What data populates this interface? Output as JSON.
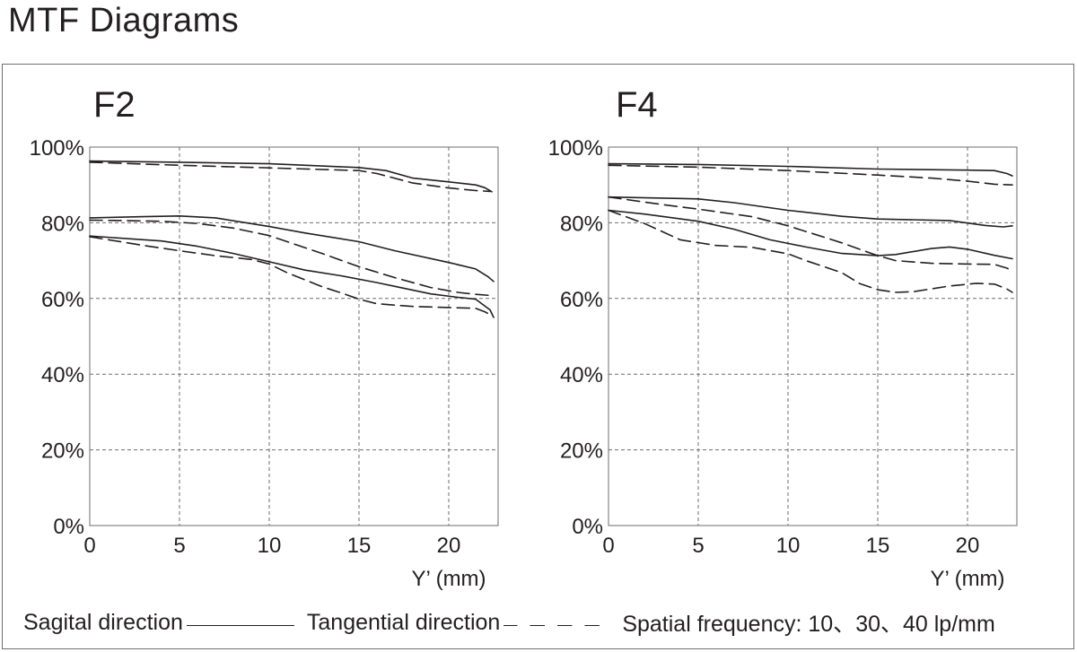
{
  "page": {
    "title": "MTF Diagrams"
  },
  "legend": {
    "sagital": "Sagital direction",
    "tangential": "Tangential direction",
    "spatial": "Spatial frequency: 10、30、40 lp/mm"
  },
  "colors": {
    "ink": "#231f20",
    "grid": "#6d6e71",
    "background": "#ffffff"
  },
  "chart_data": [
    {
      "type": "line",
      "title": "F2",
      "xlabel": "Y’ (mm)",
      "ylabel": "",
      "xlim": [
        0,
        22.5
      ],
      "ylim": [
        0,
        100
      ],
      "xticks": [
        0,
        5,
        10,
        15,
        20
      ],
      "yticks": [
        0,
        20,
        40,
        60,
        80,
        100
      ],
      "xtick_labels": [
        "0",
        "5",
        "10",
        "15",
        "20"
      ],
      "ytick_labels": [
        "0%",
        "20%",
        "40%",
        "60%",
        "80%",
        "100%"
      ],
      "grid": true,
      "series": [
        {
          "style": "solid",
          "points": [
            [
              0,
              96.3
            ],
            [
              5,
              96.0
            ],
            [
              10,
              95.6
            ],
            [
              15,
              94.6
            ],
            [
              16.5,
              93.8
            ],
            [
              18,
              91.8
            ],
            [
              20,
              90.8
            ],
            [
              21.5,
              90.0
            ],
            [
              22,
              89.3
            ],
            [
              22.4,
              88.2
            ]
          ]
        },
        {
          "style": "dashed",
          "points": [
            [
              0,
              96.0
            ],
            [
              5,
              95.2
            ],
            [
              10,
              94.5
            ],
            [
              15,
              93.8
            ],
            [
              16,
              93.0
            ],
            [
              18,
              90.5
            ],
            [
              20,
              89.2
            ],
            [
              21.5,
              88.5
            ],
            [
              22.3,
              88.3
            ]
          ]
        },
        {
          "style": "solid",
          "points": [
            [
              0,
              81.3
            ],
            [
              3,
              81.6
            ],
            [
              5,
              81.8
            ],
            [
              7,
              81.3
            ],
            [
              10,
              79.0
            ],
            [
              12,
              77.3
            ],
            [
              15,
              75.0
            ],
            [
              17,
              72.6
            ],
            [
              20,
              69.5
            ],
            [
              21.5,
              67.8
            ],
            [
              22.2,
              65.7
            ],
            [
              22.5,
              64.5
            ]
          ]
        },
        {
          "style": "dashed",
          "points": [
            [
              0,
              80.7
            ],
            [
              4,
              80.4
            ],
            [
              6,
              79.8
            ],
            [
              8,
              78.6
            ],
            [
              10,
              76.6
            ],
            [
              13,
              71.8
            ],
            [
              15,
              68.4
            ],
            [
              17,
              65.5
            ],
            [
              19,
              62.9
            ],
            [
              20.5,
              61.6
            ],
            [
              21.5,
              61.1
            ],
            [
              22.3,
              60.8
            ]
          ]
        },
        {
          "style": "solid",
          "points": [
            [
              0,
              76.5
            ],
            [
              4,
              75.2
            ],
            [
              6,
              73.8
            ],
            [
              8,
              71.9
            ],
            [
              10,
              69.7
            ],
            [
              12,
              67.5
            ],
            [
              14,
              66.0
            ],
            [
              16,
              64.2
            ],
            [
              17,
              63.2
            ],
            [
              19,
              61.2
            ],
            [
              20.5,
              60.3
            ],
            [
              21.5,
              59.8
            ],
            [
              22.3,
              57.0
            ],
            [
              22.5,
              55.0
            ]
          ]
        },
        {
          "style": "dashed",
          "points": [
            [
              0,
              76.3
            ],
            [
              3,
              74.0
            ],
            [
              5,
              72.6
            ],
            [
              7,
              71.3
            ],
            [
              9,
              70.3
            ],
            [
              10,
              69.1
            ],
            [
              11,
              66.8
            ],
            [
              13,
              63.0
            ],
            [
              14,
              61.5
            ],
            [
              15,
              59.8
            ],
            [
              16,
              58.6
            ],
            [
              18,
              57.9
            ],
            [
              20,
              57.6
            ],
            [
              21.5,
              57.4
            ],
            [
              22,
              56.5
            ],
            [
              22.4,
              55.5
            ]
          ]
        }
      ]
    },
    {
      "type": "line",
      "title": "F4",
      "xlabel": "Y’ (mm)",
      "ylabel": "",
      "xlim": [
        0,
        22.5
      ],
      "ylim": [
        0,
        100
      ],
      "xticks": [
        0,
        5,
        10,
        15,
        20
      ],
      "yticks": [
        0,
        20,
        40,
        60,
        80,
        100
      ],
      "xtick_labels": [
        "0",
        "5",
        "10",
        "15",
        "20"
      ],
      "ytick_labels": [
        "0%",
        "20%",
        "40%",
        "60%",
        "80%",
        "100%"
      ],
      "grid": true,
      "series": [
        {
          "style": "solid",
          "points": [
            [
              0,
              95.6
            ],
            [
              5,
              95.4
            ],
            [
              10,
              94.9
            ],
            [
              15,
              94.2
            ],
            [
              20,
              93.9
            ],
            [
              21.5,
              93.8
            ],
            [
              22.2,
              93.0
            ],
            [
              22.5,
              92.4
            ]
          ]
        },
        {
          "style": "dashed",
          "points": [
            [
              0,
              95.2
            ],
            [
              5,
              94.7
            ],
            [
              10,
              93.8
            ],
            [
              15,
              92.6
            ],
            [
              18,
              91.8
            ],
            [
              20,
              91.0
            ],
            [
              21.5,
              90.2
            ],
            [
              22.5,
              90.0
            ]
          ]
        },
        {
          "style": "solid",
          "points": [
            [
              0,
              86.8
            ],
            [
              5,
              86.3
            ],
            [
              7,
              85.3
            ],
            [
              10,
              83.3
            ],
            [
              13,
              81.7
            ],
            [
              15,
              81.0
            ],
            [
              19,
              80.6
            ],
            [
              21,
              79.3
            ],
            [
              22,
              78.9
            ],
            [
              22.5,
              79.2
            ]
          ]
        },
        {
          "style": "dashed",
          "points": [
            [
              0,
              86.8
            ],
            [
              3,
              84.8
            ],
            [
              5,
              83.6
            ],
            [
              8,
              81.6
            ],
            [
              10,
              79.2
            ],
            [
              13,
              74.7
            ],
            [
              15,
              71.3
            ],
            [
              16,
              70.0
            ],
            [
              18,
              69.3
            ],
            [
              20,
              69.1
            ],
            [
              21.5,
              69.0
            ],
            [
              22.2,
              68.0
            ],
            [
              22.5,
              67.2
            ]
          ]
        },
        {
          "style": "solid",
          "points": [
            [
              0,
              83.3
            ],
            [
              2,
              82.3
            ],
            [
              5,
              80.4
            ],
            [
              7,
              78.3
            ],
            [
              9,
              75.5
            ],
            [
              11,
              73.6
            ],
            [
              13,
              71.9
            ],
            [
              15,
              71.3
            ],
            [
              16,
              71.6
            ],
            [
              18,
              73.2
            ],
            [
              19,
              73.6
            ],
            [
              20,
              73.0
            ],
            [
              21.5,
              71.4
            ],
            [
              22.5,
              70.5
            ]
          ]
        },
        {
          "style": "dashed",
          "points": [
            [
              0,
              83.3
            ],
            [
              2,
              79.8
            ],
            [
              4,
              75.5
            ],
            [
              6,
              74.0
            ],
            [
              8,
              73.5
            ],
            [
              10,
              71.8
            ],
            [
              11,
              70.0
            ],
            [
              13,
              66.8
            ],
            [
              14,
              63.9
            ],
            [
              15,
              62.3
            ],
            [
              16,
              61.6
            ],
            [
              17,
              61.8
            ],
            [
              19,
              63.3
            ],
            [
              20.5,
              64.0
            ],
            [
              21.5,
              63.8
            ],
            [
              22.2,
              62.5
            ],
            [
              22.5,
              61.6
            ]
          ]
        }
      ]
    }
  ]
}
